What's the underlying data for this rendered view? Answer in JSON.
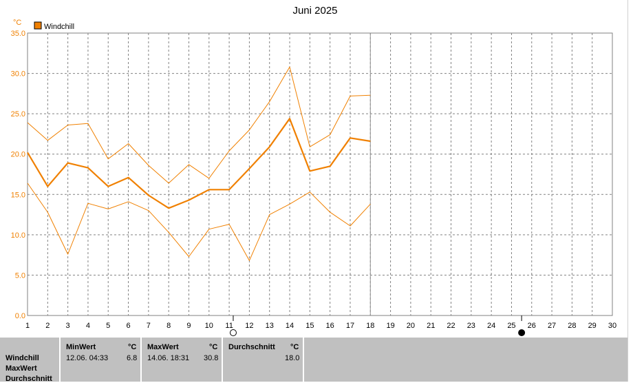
{
  "chart_data": {
    "type": "line",
    "title": "Juni 2025",
    "yunit": "°C",
    "legend": "Windchill",
    "legend_position": "top-left",
    "color": "#f08000",
    "grid": true,
    "xlim": [
      1,
      30
    ],
    "ylim": [
      0,
      35
    ],
    "xticks": [
      1,
      2,
      3,
      4,
      5,
      6,
      7,
      8,
      9,
      10,
      11,
      12,
      13,
      14,
      15,
      16,
      17,
      18,
      19,
      20,
      21,
      22,
      23,
      24,
      25,
      26,
      27,
      28,
      29,
      30
    ],
    "yticks": [
      "0.0",
      "5.0",
      "10.0",
      "15.0",
      "20.0",
      "25.0",
      "30.0",
      "35.0"
    ],
    "x": [
      1,
      2,
      3,
      4,
      5,
      6,
      7,
      8,
      9,
      10,
      11,
      12,
      13,
      14,
      15,
      16,
      17,
      18
    ],
    "series": [
      {
        "role": "max",
        "values": [
          23.9,
          21.7,
          23.6,
          23.8,
          19.4,
          21.3,
          18.6,
          16.4,
          18.7,
          17.0,
          20.4,
          23.0,
          26.5,
          30.8,
          20.9,
          22.4,
          27.2,
          27.3
        ]
      },
      {
        "role": "avg",
        "values": [
          20.2,
          16.0,
          18.9,
          18.3,
          16.0,
          17.1,
          14.9,
          13.3,
          14.3,
          15.6,
          15.6,
          18.2,
          20.9,
          24.4,
          17.9,
          18.5,
          22.0,
          21.6
        ]
      },
      {
        "role": "min",
        "values": [
          16.4,
          12.8,
          7.6,
          13.9,
          13.2,
          14.1,
          13.0,
          10.3,
          7.3,
          10.7,
          11.3,
          6.8,
          12.5,
          13.8,
          15.3,
          12.8,
          11.1,
          13.8
        ]
      }
    ],
    "markers": {
      "new_moon_day": 11.2,
      "full_moon_day": 25.5
    }
  },
  "panel": {
    "rows": [
      "Windchill",
      "MaxWert",
      "Durchschnitt"
    ],
    "min": {
      "header": "MinWert",
      "unit": "°C",
      "datetime": "12.06.  04:33",
      "value": "6.8"
    },
    "max": {
      "header": "MaxWert",
      "unit": "°C",
      "datetime": "14.06.  18:31",
      "value": "30.8"
    },
    "avg": {
      "header": "Durchschnitt",
      "unit": "°C",
      "value": "18.0"
    }
  }
}
